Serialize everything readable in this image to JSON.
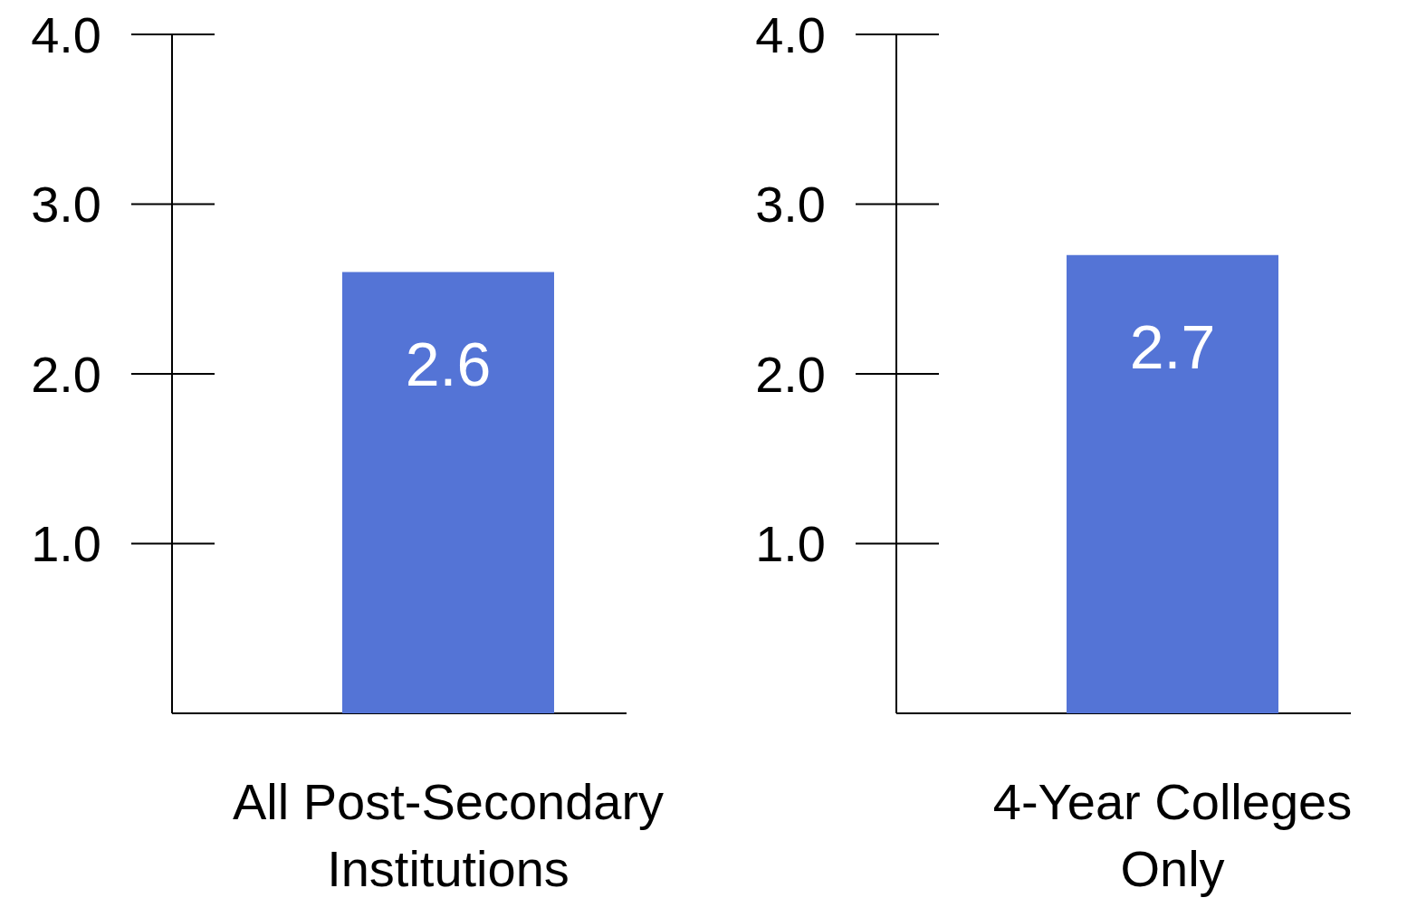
{
  "chart_data": [
    {
      "type": "bar",
      "categories": [
        "All Post-Secondary Institutions"
      ],
      "values": [
        2.6
      ],
      "color": "#5474d6",
      "ylim": [
        0,
        4
      ],
      "yticks": [
        {
          "value": 1,
          "label": "1.0"
        },
        {
          "value": 2,
          "label": "2.0"
        },
        {
          "value": 3,
          "label": "3.0"
        },
        {
          "value": 4,
          "label": "4.0"
        }
      ],
      "data_labels": true
    },
    {
      "type": "bar",
      "categories": [
        "4-Year Colleges Only"
      ],
      "values": [
        2.7
      ],
      "color": "#5474d6",
      "ylim": [
        0,
        4
      ],
      "yticks": [
        {
          "value": 1,
          "label": "1.0"
        },
        {
          "value": 2,
          "label": "2.0"
        },
        {
          "value": 3,
          "label": "3.0"
        },
        {
          "value": 4,
          "label": "4.0"
        }
      ],
      "data_labels": true
    }
  ]
}
